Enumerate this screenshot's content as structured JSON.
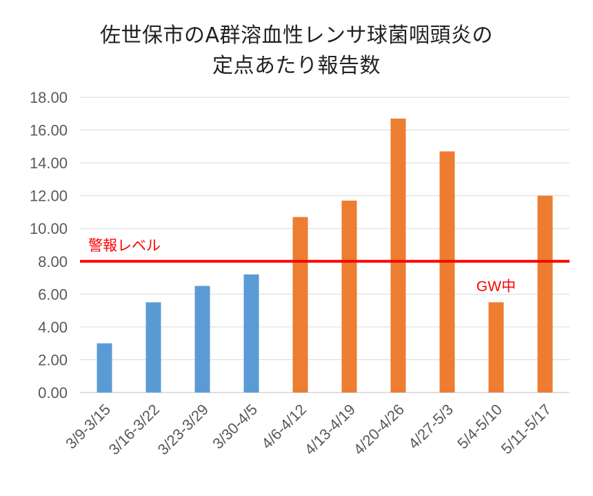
{
  "chart_data": {
    "type": "bar",
    "title_lines": [
      "佐世保市のA群溶血性レンサ球菌咽頭炎の",
      "定点あたり報告数"
    ],
    "categories": [
      "3/9-3/15",
      "3/16-3/22",
      "3/23-3/29",
      "3/30-4/5",
      "4/6-4/12",
      "4/13-4/19",
      "4/20-4/26",
      "4/27-5/3",
      "5/4-5/10",
      "5/11-5/17"
    ],
    "values": [
      3.0,
      5.5,
      6.5,
      7.2,
      10.7,
      11.7,
      16.7,
      14.7,
      5.5,
      12.0
    ],
    "bar_colors": [
      "#5b9bd5",
      "#5b9bd5",
      "#5b9bd5",
      "#5b9bd5",
      "#ed7d31",
      "#ed7d31",
      "#ed7d31",
      "#ed7d31",
      "#ed7d31",
      "#ed7d31"
    ],
    "ylim": [
      0,
      18
    ],
    "ytick_labels": [
      "0.00",
      "2.00",
      "4.00",
      "6.00",
      "8.00",
      "10.00",
      "12.00",
      "14.00",
      "16.00",
      "18.00"
    ],
    "grid": true,
    "reference_line": {
      "value": 8,
      "label": "警報レベル",
      "color": "#ff0000"
    },
    "annotations": [
      {
        "category": "5/4-5/10",
        "text": "GW中",
        "color": "#ff0000"
      }
    ]
  }
}
